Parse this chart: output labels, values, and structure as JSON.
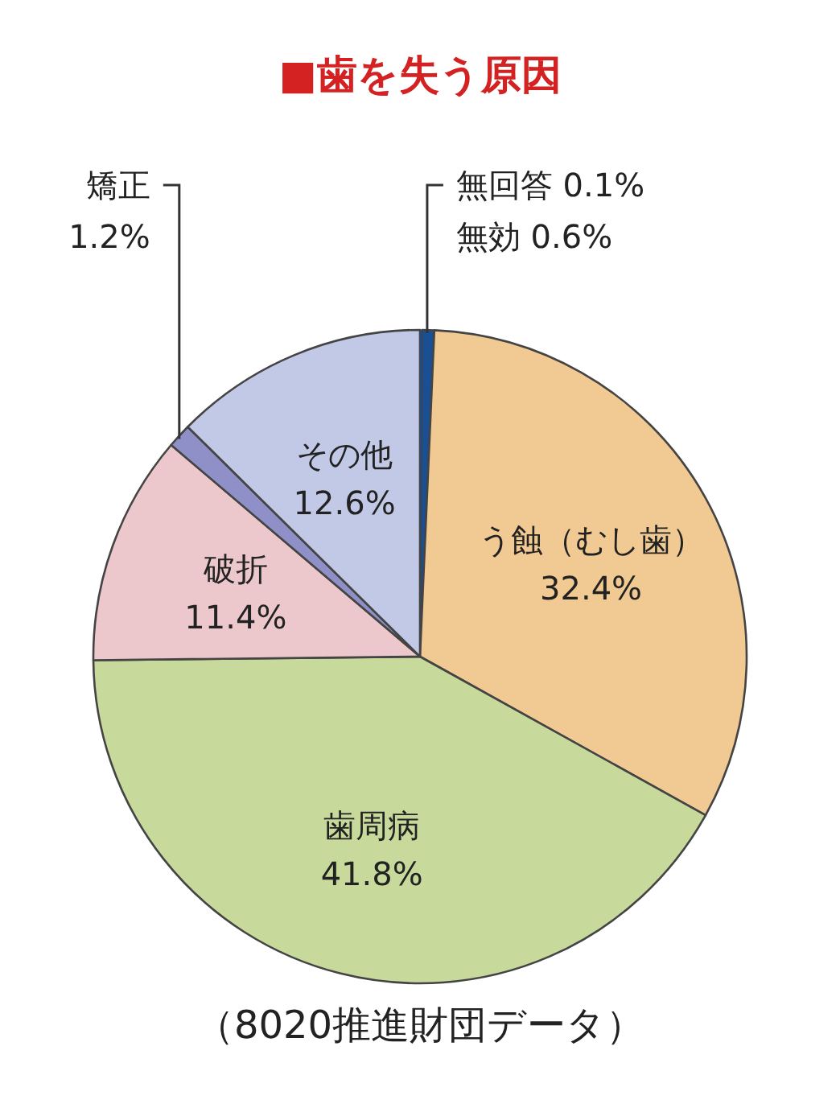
{
  "chart_data": {
    "type": "pie",
    "title": "■歯を失う原因",
    "categories": [
      "無回答",
      "無効",
      "う蝕（むし歯）",
      "歯周病",
      "破折",
      "矯正",
      "その他"
    ],
    "values": [
      0.1,
      0.6,
      32.4,
      41.8,
      11.4,
      1.2,
      12.6
    ],
    "value_labels": [
      "0.1%",
      "0.6%",
      "32.4%",
      "41.8%",
      "11.4%",
      "1.2%",
      "12.6%"
    ],
    "colors": [
      "#1b4f93",
      "#1b4f93",
      "#f1c992",
      "#c7da9c",
      "#ecc8cd",
      "#8f90c8",
      "#c2c9e7"
    ],
    "annotations": [
      "（8020推進財団データ）"
    ]
  }
}
